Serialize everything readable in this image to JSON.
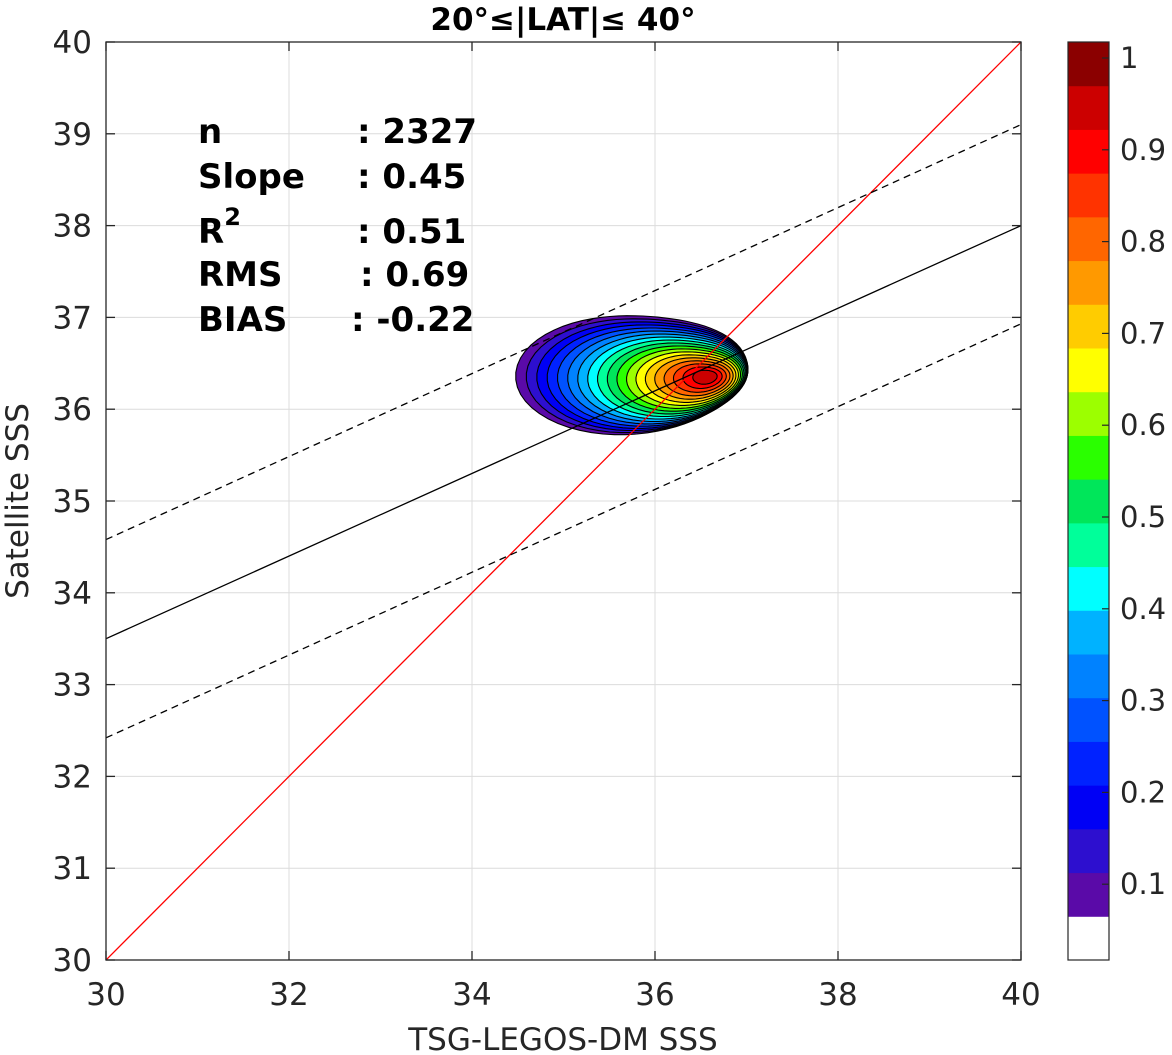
{
  "chart_data": {
    "type": "contour",
    "title": "20°≤|LAT|≤ 40°",
    "xlabel": "TSG-LEGOS-DM SSS",
    "ylabel": "Satellite SSS",
    "xlim": [
      30,
      40
    ],
    "ylim": [
      30,
      40
    ],
    "xticks": [
      "30",
      "32",
      "34",
      "36",
      "38",
      "40"
    ],
    "yticks": [
      "30",
      "31",
      "32",
      "33",
      "34",
      "35",
      "36",
      "37",
      "38",
      "39",
      "40"
    ],
    "grid": true,
    "stats": [
      {
        "label": "n",
        "value": ": 2327"
      },
      {
        "label": "Slope",
        "value": ": 0.45"
      },
      {
        "label": "R",
        "sup": "2",
        "value": ": 0.51"
      },
      {
        "label": "RMS",
        "value": ": 0.69"
      },
      {
        "label": "BIAS",
        "value": ": -0.22"
      }
    ],
    "lines": [
      {
        "kind": "one-to-one",
        "color": "#ff0000",
        "style": "solid",
        "points": [
          [
            30,
            30
          ],
          [
            40,
            40
          ]
        ]
      },
      {
        "kind": "regression",
        "color": "#000000",
        "style": "solid",
        "points": [
          [
            30,
            33.5
          ],
          [
            40,
            38.0
          ]
        ]
      },
      {
        "kind": "regression-upper",
        "color": "#000000",
        "style": "dashed",
        "points": [
          [
            30,
            34.58
          ],
          [
            40,
            39.1
          ]
        ]
      },
      {
        "kind": "regression-lower",
        "color": "#000000",
        "style": "dashed",
        "points": [
          [
            30,
            32.42
          ],
          [
            40,
            36.93
          ]
        ]
      }
    ],
    "density_peak": {
      "x": 36.58,
      "y": 36.36,
      "value": 1.0
    },
    "contour_levels": [
      0.05,
      0.1,
      0.15,
      0.2,
      0.25,
      0.3,
      0.35,
      0.4,
      0.45,
      0.5,
      0.55,
      0.6,
      0.65,
      0.7,
      0.75,
      0.8,
      0.85,
      0.9,
      0.95
    ],
    "colorbar": {
      "range": [
        0,
        1
      ],
      "ticks": [
        "0.1",
        "0.2",
        "0.3",
        "0.4",
        "0.5",
        "0.6",
        "0.7",
        "0.8",
        "0.9",
        "1"
      ],
      "colors": [
        "#ffffff",
        "#5a0aa8",
        "#2d0fcf",
        "#0000f5",
        "#0022ff",
        "#0052ff",
        "#0082ff",
        "#00b2ff",
        "#00ffff",
        "#00ff9a",
        "#00e65a",
        "#2aff00",
        "#9cff00",
        "#ffff00",
        "#ffcc00",
        "#ff9900",
        "#ff6600",
        "#ff3300",
        "#ff0000",
        "#cc0000",
        "#8b0000"
      ]
    }
  }
}
